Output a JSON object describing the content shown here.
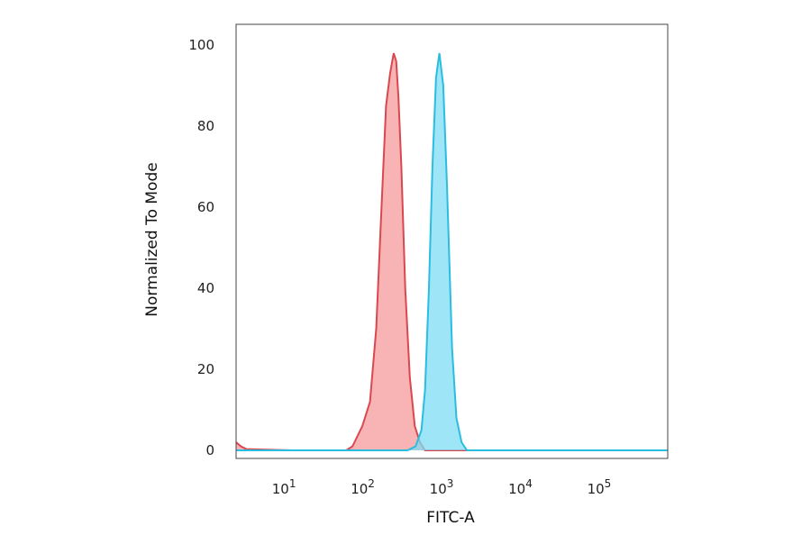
{
  "chart_data": {
    "type": "area",
    "title": "",
    "xlabel": "FITC-A",
    "ylabel": "Normalized To Mode",
    "x_scale": "log",
    "xlim": [
      2,
      600000
    ],
    "ylim": [
      0,
      105
    ],
    "grid": false,
    "y_ticks": [
      "0",
      "20",
      "40",
      "60",
      "80",
      "100"
    ],
    "x_ticks": [
      {
        "base": "10",
        "exp": "1",
        "value": 10
      },
      {
        "base": "10",
        "exp": "2",
        "value": 100
      },
      {
        "base": "10",
        "exp": "3",
        "value": 1000
      },
      {
        "base": "10",
        "exp": "4",
        "value": 10000
      },
      {
        "base": "10",
        "exp": "5",
        "value": 100000
      }
    ],
    "series": [
      {
        "color": "#d9484f",
        "fill": "#f59a9c",
        "points": [
          [
            2,
            2
          ],
          [
            2.3,
            1
          ],
          [
            2.7,
            0.3
          ],
          [
            10,
            0
          ],
          [
            50,
            0
          ],
          [
            60,
            1
          ],
          [
            80,
            6
          ],
          [
            100,
            12
          ],
          [
            120,
            30
          ],
          [
            140,
            60
          ],
          [
            160,
            85
          ],
          [
            180,
            93
          ],
          [
            200,
            98
          ],
          [
            215,
            96
          ],
          [
            230,
            87
          ],
          [
            250,
            70
          ],
          [
            280,
            40
          ],
          [
            320,
            18
          ],
          [
            370,
            6
          ],
          [
            430,
            2
          ],
          [
            500,
            0
          ],
          [
            600000,
            0
          ]
        ]
      },
      {
        "color": "#2bbde0",
        "fill": "#7fdcf6",
        "points": [
          [
            2,
            0
          ],
          [
            300,
            0
          ],
          [
            380,
            1
          ],
          [
            450,
            5
          ],
          [
            500,
            15
          ],
          [
            560,
            40
          ],
          [
            620,
            70
          ],
          [
            690,
            92
          ],
          [
            760,
            98
          ],
          [
            850,
            90
          ],
          [
            950,
            65
          ],
          [
            1100,
            25
          ],
          [
            1250,
            8
          ],
          [
            1450,
            2
          ],
          [
            1700,
            0
          ],
          [
            600000,
            0
          ]
        ]
      }
    ]
  }
}
